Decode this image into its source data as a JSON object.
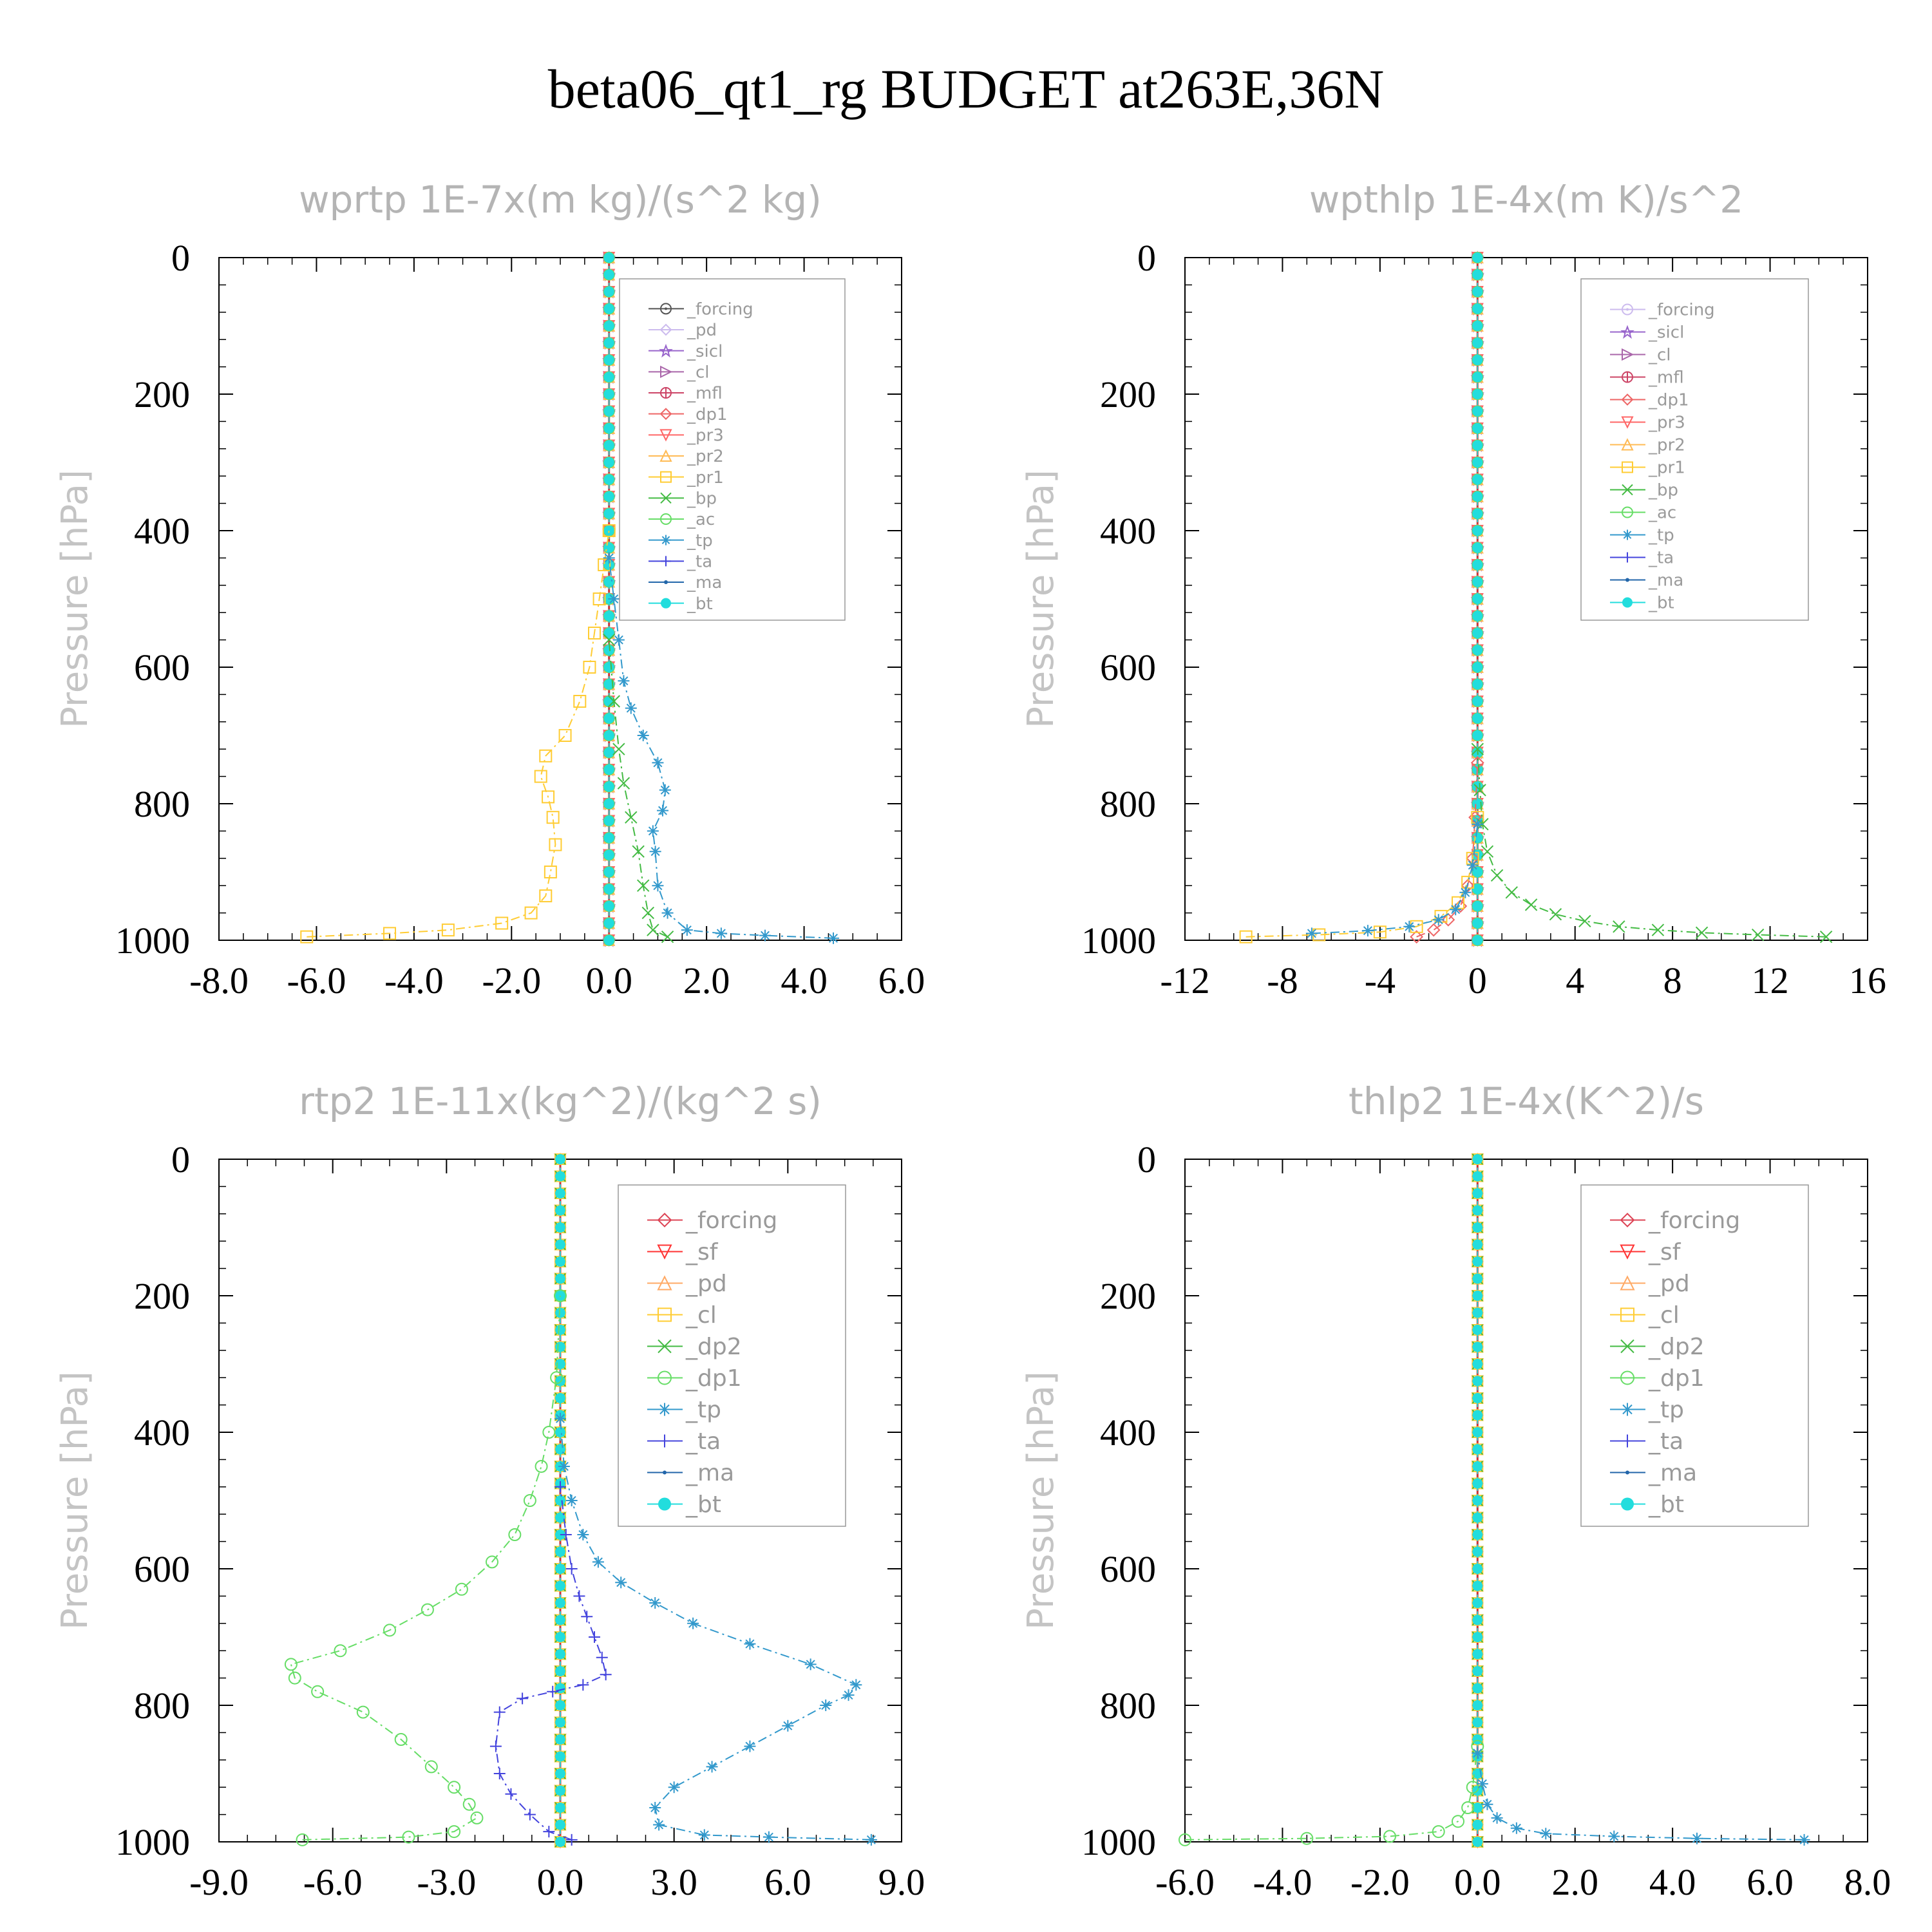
{
  "title": "beta06_qt1_rg  BUDGET at263E,36N",
  "chart_data": [
    {
      "type": "line",
      "title": "wprtp   1E-7x(m kg)/(s^2 kg)",
      "ylabel": "Pressure [hPa]",
      "xlim": [
        -8,
        6
      ],
      "ylim": [
        1000,
        0
      ],
      "xticks": [
        "-8.0",
        "-6.0",
        "-4.0",
        "-2.0",
        "0.0",
        "2.0",
        "4.0",
        "6.0"
      ],
      "yticks": [
        "0",
        "200",
        "400",
        "600",
        "800",
        "1000"
      ],
      "legend_position": "upper-right",
      "series": [
        {
          "name": "_forcing",
          "color": "#555555",
          "marker": "circle-dot"
        },
        {
          "name": "_pd",
          "color": "#ccbbee",
          "marker": "diamond"
        },
        {
          "name": "_sicl",
          "color": "#9966cc",
          "marker": "star"
        },
        {
          "name": "_cl",
          "color": "#aa66aa",
          "marker": "triangle-right"
        },
        {
          "name": "_mfl",
          "color": "#cc4466",
          "marker": "circle-plus"
        },
        {
          "name": "_dp1",
          "color": "#ee6666",
          "marker": "diamond"
        },
        {
          "name": "_pr3",
          "color": "#ff6666",
          "marker": "triangle-down"
        },
        {
          "name": "_pr2",
          "color": "#ffbb55",
          "marker": "triangle-up"
        },
        {
          "name": "_pr1",
          "color": "#ffcc33",
          "marker": "square",
          "x": [
            -6.2,
            -4.5,
            -3.3,
            -2.2,
            -1.6,
            -1.3,
            -1.2,
            -1.1,
            -1.15,
            -1.25,
            -1.4,
            -1.3,
            -0.9,
            -0.6,
            -0.4,
            -0.3,
            -0.2,
            -0.1,
            0
          ],
          "y": [
            995,
            990,
            985,
            975,
            960,
            935,
            900,
            860,
            820,
            790,
            760,
            730,
            700,
            650,
            600,
            550,
            500,
            450,
            400
          ]
        },
        {
          "name": "_bp",
          "color": "#44bb44",
          "marker": "x",
          "x": [
            1.2,
            0.9,
            0.8,
            0.7,
            0.6,
            0.45,
            0.3,
            0.2,
            0.1,
            0
          ],
          "y": [
            995,
            985,
            960,
            920,
            870,
            820,
            770,
            720,
            650,
            560
          ]
        },
        {
          "name": "_ac",
          "color": "#66dd66",
          "marker": "circle"
        },
        {
          "name": "_tp",
          "color": "#3399cc",
          "marker": "asterisk",
          "x": [
            4.6,
            3.2,
            2.3,
            1.6,
            1.2,
            1.0,
            0.95,
            0.9,
            1.1,
            1.15,
            1.0,
            0.7,
            0.45,
            0.3,
            0.2,
            0.1,
            0
          ],
          "y": [
            997,
            993,
            990,
            985,
            960,
            920,
            870,
            840,
            810,
            780,
            740,
            700,
            660,
            620,
            560,
            500,
            440
          ]
        },
        {
          "name": "_ta",
          "color": "#4444dd",
          "marker": "plus"
        },
        {
          "name": "_ma",
          "color": "#2266aa",
          "marker": "dot"
        },
        {
          "name": "_bt",
          "color": "#22dddd",
          "marker": "filled-circle"
        }
      ]
    },
    {
      "type": "line",
      "title": "wpthlp   1E-4x(m K)/s^2",
      "ylabel": "Pressure [hPa]",
      "xlim": [
        -12,
        16
      ],
      "ylim": [
        1000,
        0
      ],
      "xticks": [
        "-12",
        "-8",
        "-4",
        "0",
        "4",
        "8",
        "12",
        "16"
      ],
      "yticks": [
        "0",
        "200",
        "400",
        "600",
        "800",
        "1000"
      ],
      "legend_position": "upper-right",
      "series": [
        {
          "name": "_forcing",
          "color": "#ccbbee",
          "marker": "circle-dot"
        },
        {
          "name": "_sicl",
          "color": "#9966cc",
          "marker": "star"
        },
        {
          "name": "_cl",
          "color": "#aa66aa",
          "marker": "triangle-right"
        },
        {
          "name": "_mfl",
          "color": "#cc4466",
          "marker": "circle-plus"
        },
        {
          "name": "_dp1",
          "color": "#ee6666",
          "marker": "diamond",
          "x": [
            -2.5,
            -1.8,
            -1.2,
            -0.7,
            -0.4,
            -0.2,
            -0.1,
            0
          ],
          "y": [
            995,
            985,
            970,
            950,
            920,
            880,
            820,
            740
          ]
        },
        {
          "name": "_pr3",
          "color": "#ff6666",
          "marker": "triangle-down"
        },
        {
          "name": "_pr2",
          "color": "#ffbb55",
          "marker": "triangle-up"
        },
        {
          "name": "_pr1",
          "color": "#ffcc33",
          "marker": "square",
          "x": [
            -9.5,
            -6.5,
            -4.0,
            -2.5,
            -1.5,
            -0.8,
            -0.4,
            -0.2,
            0
          ],
          "y": [
            995,
            992,
            988,
            980,
            965,
            945,
            915,
            880,
            820
          ]
        },
        {
          "name": "_bp",
          "color": "#44bb44",
          "marker": "x",
          "x": [
            14.3,
            11.5,
            9.2,
            7.4,
            5.8,
            4.4,
            3.2,
            2.2,
            1.4,
            0.8,
            0.4,
            0.2,
            0.1,
            0
          ],
          "y": [
            995,
            992,
            989,
            985,
            980,
            972,
            962,
            948,
            930,
            905,
            870,
            830,
            780,
            720
          ]
        },
        {
          "name": "_ac",
          "color": "#66dd66",
          "marker": "circle"
        },
        {
          "name": "_tp",
          "color": "#3399cc",
          "marker": "asterisk",
          "x": [
            -6.8,
            -4.5,
            -2.8,
            -1.6,
            -0.9,
            -0.5,
            -0.2,
            0
          ],
          "y": [
            990,
            986,
            980,
            970,
            955,
            930,
            890,
            830
          ]
        },
        {
          "name": "_ta",
          "color": "#4444dd",
          "marker": "plus"
        },
        {
          "name": "_ma",
          "color": "#2266aa",
          "marker": "dot"
        },
        {
          "name": "_bt",
          "color": "#22dddd",
          "marker": "filled-circle"
        }
      ]
    },
    {
      "type": "line",
      "title": "rtp2   1E-11x(kg^2)/(kg^2 s)",
      "ylabel": "Pressure [hPa]",
      "xlim": [
        -9,
        9
      ],
      "ylim": [
        1000,
        0
      ],
      "xticks": [
        "-9.0",
        "-6.0",
        "-3.0",
        "0.0",
        "3.0",
        "6.0",
        "9.0"
      ],
      "yticks": [
        "0",
        "200",
        "400",
        "600",
        "800",
        "1000"
      ],
      "legend_position": "upper-right",
      "series": [
        {
          "name": "_forcing",
          "color": "#dd4455",
          "marker": "diamond"
        },
        {
          "name": "_sf",
          "color": "#ff3333",
          "marker": "triangle-down"
        },
        {
          "name": "_pd",
          "color": "#ffaa66",
          "marker": "triangle-up"
        },
        {
          "name": "_cl",
          "color": "#ffcc33",
          "marker": "square"
        },
        {
          "name": "_dp2",
          "color": "#44bb44",
          "marker": "x"
        },
        {
          "name": "_dp1",
          "color": "#66dd66",
          "marker": "circle",
          "x": [
            -6.8,
            -4.0,
            -2.8,
            -2.2,
            -2.4,
            -2.8,
            -3.4,
            -4.2,
            -5.2,
            -6.4,
            -7.0,
            -7.1,
            -5.8,
            -4.5,
            -3.5,
            -2.6,
            -1.8,
            -1.2,
            -0.8,
            -0.5,
            -0.3,
            -0.1,
            0
          ],
          "y": [
            997,
            993,
            985,
            965,
            945,
            920,
            890,
            850,
            810,
            780,
            760,
            740,
            720,
            690,
            660,
            630,
            590,
            550,
            500,
            450,
            400,
            320,
            200
          ]
        },
        {
          "name": "_tp",
          "color": "#3399cc",
          "marker": "asterisk",
          "x": [
            8.2,
            5.5,
            3.8,
            2.6,
            2.5,
            3.0,
            4.0,
            5.0,
            6.0,
            7.0,
            7.6,
            7.8,
            6.6,
            5.0,
            3.5,
            2.5,
            1.6,
            1.0,
            0.6,
            0.3,
            0.1,
            0
          ],
          "y": [
            997,
            993,
            990,
            975,
            950,
            920,
            890,
            860,
            830,
            800,
            785,
            770,
            740,
            710,
            680,
            650,
            620,
            590,
            550,
            500,
            450,
            380
          ]
        },
        {
          "name": "_ta",
          "color": "#4444dd",
          "marker": "plus",
          "x": [
            0.3,
            -0.3,
            -0.8,
            -1.3,
            -1.6,
            -1.7,
            -1.6,
            -1.0,
            -0.2,
            0.6,
            1.2,
            1.1,
            0.9,
            0.7,
            0.5,
            0.3,
            0.15,
            0
          ],
          "y": [
            997,
            985,
            960,
            930,
            900,
            860,
            810,
            790,
            780,
            770,
            755,
            730,
            700,
            670,
            640,
            600,
            550,
            480
          ]
        },
        {
          "name": "_ma",
          "color": "#2266aa",
          "marker": "dot"
        },
        {
          "name": "_bt",
          "color": "#22dddd",
          "marker": "filled-circle"
        }
      ]
    },
    {
      "type": "line",
      "title": "thlp2   1E-4x(K^2)/s",
      "ylabel": "Pressure [hPa]",
      "xlim": [
        -6,
        8
      ],
      "ylim": [
        1000,
        0
      ],
      "xticks": [
        "-6.0",
        "-4.0",
        "-2.0",
        "0.0",
        "2.0",
        "4.0",
        "6.0",
        "8.0"
      ],
      "yticks": [
        "0",
        "200",
        "400",
        "600",
        "800",
        "1000"
      ],
      "legend_position": "upper-right",
      "series": [
        {
          "name": "_forcing",
          "color": "#dd4455",
          "marker": "diamond"
        },
        {
          "name": "_sf",
          "color": "#ff3333",
          "marker": "triangle-down"
        },
        {
          "name": "_pd",
          "color": "#ffaa66",
          "marker": "triangle-up"
        },
        {
          "name": "_cl",
          "color": "#ffcc33",
          "marker": "square"
        },
        {
          "name": "_dp2",
          "color": "#44bb44",
          "marker": "x"
        },
        {
          "name": "_dp1",
          "color": "#66dd66",
          "marker": "circle",
          "x": [
            -6.0,
            -3.5,
            -1.8,
            -0.8,
            -0.4,
            -0.2,
            -0.1,
            0
          ],
          "y": [
            997,
            995,
            992,
            985,
            970,
            950,
            920,
            860
          ]
        },
        {
          "name": "_tp",
          "color": "#3399cc",
          "marker": "asterisk",
          "x": [
            6.7,
            4.5,
            2.8,
            1.4,
            0.8,
            0.4,
            0.2,
            0.1,
            0
          ],
          "y": [
            997,
            995,
            992,
            988,
            980,
            965,
            945,
            915,
            870
          ]
        },
        {
          "name": "_ta",
          "color": "#4444dd",
          "marker": "plus"
        },
        {
          "name": "_ma",
          "color": "#2266aa",
          "marker": "dot"
        },
        {
          "name": "_bt",
          "color": "#22dddd",
          "marker": "filled-circle"
        }
      ]
    }
  ]
}
